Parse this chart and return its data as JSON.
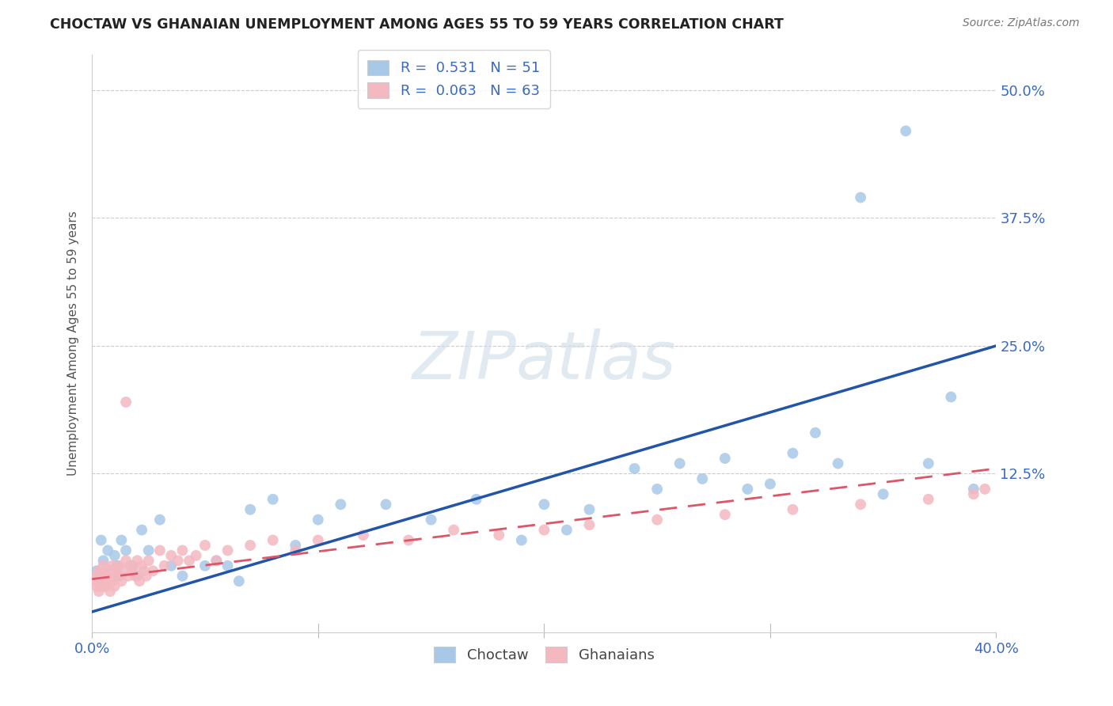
{
  "title": "CHOCTAW VS GHANAIAN UNEMPLOYMENT AMONG AGES 55 TO 59 YEARS CORRELATION CHART",
  "source": "Source: ZipAtlas.com",
  "ylabel": "Unemployment Among Ages 55 to 59 years",
  "choctaw_color": "#a8c8e8",
  "ghanaian_color": "#f4b8c0",
  "choctaw_line_color": "#2255aa",
  "ghanaian_line_color": "#dd5566",
  "watermark_text": "ZIPatlas",
  "xlim": [
    0.0,
    0.4
  ],
  "ylim": [
    -0.03,
    0.535
  ],
  "ytick_vals": [
    0.0,
    0.125,
    0.25,
    0.375,
    0.5
  ],
  "ytick_labels": [
    "",
    "12.5%",
    "25.0%",
    "37.5%",
    "50.0%"
  ],
  "xtick_vals": [
    0.0,
    0.1,
    0.2,
    0.3,
    0.4
  ],
  "xtick_labels": [
    "0.0%",
    "",
    "",
    "",
    "40.0%"
  ],
  "legend_line1": "R =  0.531   N = 51",
  "legend_line2": "R =  0.063   N = 63",
  "bottom_legend": [
    "Choctaw",
    "Ghanaians"
  ],
  "choctaw_x": [
    0.002,
    0.004,
    0.005,
    0.006,
    0.007,
    0.008,
    0.009,
    0.01,
    0.011,
    0.012,
    0.013,
    0.015,
    0.018,
    0.02,
    0.022,
    0.025,
    0.03,
    0.035,
    0.04,
    0.05,
    0.055,
    0.06,
    0.065,
    0.07,
    0.08,
    0.09,
    0.1,
    0.11,
    0.13,
    0.15,
    0.17,
    0.19,
    0.2,
    0.21,
    0.22,
    0.24,
    0.25,
    0.26,
    0.27,
    0.28,
    0.29,
    0.3,
    0.31,
    0.32,
    0.33,
    0.34,
    0.35,
    0.36,
    0.37,
    0.38,
    0.39
  ],
  "choctaw_y": [
    0.03,
    0.06,
    0.04,
    0.02,
    0.05,
    0.03,
    0.025,
    0.045,
    0.035,
    0.025,
    0.06,
    0.05,
    0.035,
    0.025,
    0.07,
    0.05,
    0.08,
    0.035,
    0.025,
    0.035,
    0.04,
    0.035,
    0.02,
    0.09,
    0.1,
    0.055,
    0.08,
    0.095,
    0.095,
    0.08,
    0.1,
    0.06,
    0.095,
    0.07,
    0.09,
    0.13,
    0.11,
    0.135,
    0.12,
    0.14,
    0.11,
    0.115,
    0.145,
    0.165,
    0.135,
    0.395,
    0.105,
    0.46,
    0.135,
    0.2,
    0.11
  ],
  "ghanaian_x": [
    0.001,
    0.002,
    0.002,
    0.003,
    0.003,
    0.004,
    0.004,
    0.005,
    0.005,
    0.006,
    0.006,
    0.007,
    0.007,
    0.008,
    0.008,
    0.009,
    0.009,
    0.01,
    0.01,
    0.011,
    0.012,
    0.013,
    0.014,
    0.015,
    0.016,
    0.017,
    0.018,
    0.019,
    0.02,
    0.021,
    0.022,
    0.023,
    0.024,
    0.025,
    0.027,
    0.03,
    0.032,
    0.035,
    0.038,
    0.04,
    0.043,
    0.046,
    0.05,
    0.055,
    0.06,
    0.07,
    0.08,
    0.09,
    0.1,
    0.12,
    0.14,
    0.16,
    0.18,
    0.2,
    0.22,
    0.25,
    0.28,
    0.31,
    0.34,
    0.37,
    0.39,
    0.395,
    0.015
  ],
  "ghanaian_y": [
    0.02,
    0.025,
    0.015,
    0.03,
    0.01,
    0.025,
    0.015,
    0.035,
    0.02,
    0.03,
    0.015,
    0.025,
    0.02,
    0.03,
    0.01,
    0.035,
    0.02,
    0.03,
    0.015,
    0.025,
    0.035,
    0.02,
    0.03,
    0.04,
    0.025,
    0.035,
    0.03,
    0.025,
    0.04,
    0.02,
    0.035,
    0.03,
    0.025,
    0.04,
    0.03,
    0.05,
    0.035,
    0.045,
    0.04,
    0.05,
    0.04,
    0.045,
    0.055,
    0.04,
    0.05,
    0.055,
    0.06,
    0.05,
    0.06,
    0.065,
    0.06,
    0.07,
    0.065,
    0.07,
    0.075,
    0.08,
    0.085,
    0.09,
    0.095,
    0.1,
    0.105,
    0.11,
    0.195
  ],
  "choctaw_line_x": [
    0.0,
    0.4
  ],
  "choctaw_line_y": [
    -0.01,
    0.25
  ],
  "ghanaian_line_x": [
    0.0,
    0.4
  ],
  "ghanaian_line_y": [
    0.022,
    0.13
  ]
}
